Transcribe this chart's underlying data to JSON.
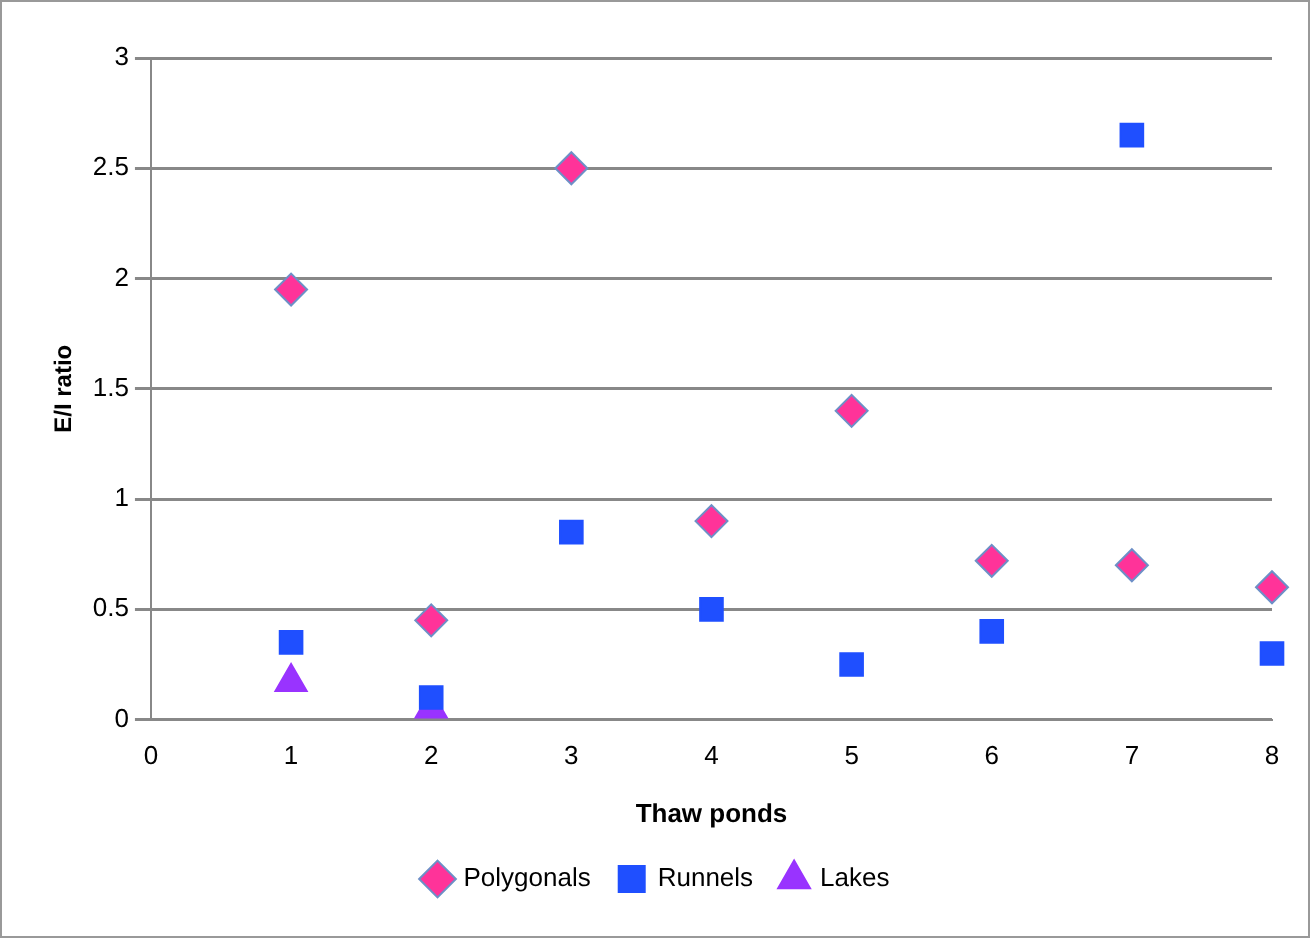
{
  "chart_data": {
    "type": "scatter",
    "xlabel": "Thaw ponds",
    "ylabel": "E/I ratio",
    "xlim": [
      0,
      8
    ],
    "xticks": [
      0,
      1,
      2,
      3,
      4,
      5,
      6,
      7,
      8
    ],
    "ylim": [
      0,
      3
    ],
    "yticks": [
      0,
      0.5,
      1,
      1.5,
      2,
      2.5,
      3
    ],
    "grid": "y",
    "legend": "bottom",
    "series": [
      {
        "name": "Polygonals",
        "color": "#ff3399",
        "marker": "diamond",
        "x": [
          1,
          2,
          3,
          4,
          5,
          6,
          7,
          8
        ],
        "values": [
          1.95,
          0.45,
          2.5,
          0.9,
          1.4,
          0.72,
          0.7,
          0.6
        ]
      },
      {
        "name": "Runnels",
        "color": "#1f4fff",
        "marker": "square",
        "x": [
          1,
          2,
          3,
          4,
          5,
          6,
          7,
          8
        ],
        "values": [
          0.35,
          0.1,
          0.85,
          0.5,
          0.25,
          0.4,
          2.65,
          0.3
        ]
      },
      {
        "name": "Lakes",
        "color": "#9933ff",
        "marker": "triangle",
        "x": [
          1,
          2
        ],
        "values": [
          0.17,
          0.05
        ]
      }
    ]
  }
}
